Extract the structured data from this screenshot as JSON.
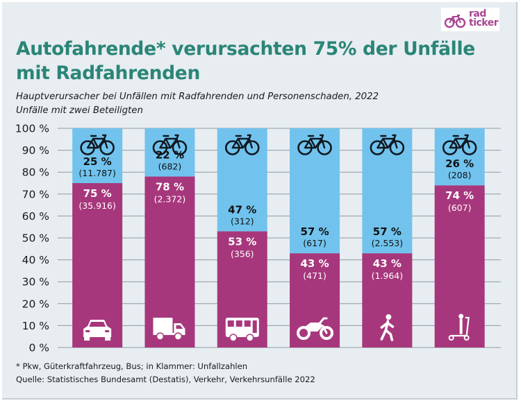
{
  "logo": {
    "line1": "rad",
    "line2": "ticker"
  },
  "title": "Autofahrende* verursachten 75% der Unfälle mit Radfahrenden",
  "subtitle_line1": "Hauptverursacher bei Unfällen mit Radfahrenden und Personenschaden, 2022",
  "subtitle_line2": "Unfälle mit zwei Beteiligten",
  "footnote_line1": "* Pkw, Güterkraftfahrzeug, Bus;  in Klammer: Unfallzahlen",
  "footnote_line2": "Quelle: Statistisches Bundesamt (Destatis), Verkehr, Verkehrsunfälle 2022",
  "colors": {
    "title": "#2a8577",
    "bike": "#71c3ee",
    "other": "#a7377c",
    "grid": "#8e9aa3",
    "background": "#e8edf1"
  },
  "chart_data": {
    "type": "bar",
    "stacked": true,
    "categories": [
      "Pkw",
      "Güterkraftfahrzeug",
      "Bus",
      "Motorrad",
      "Fußgänger",
      "E-Scooter"
    ],
    "category_icons": [
      "car-icon",
      "truck-icon",
      "bus-icon",
      "motorcycle-icon",
      "pedestrian-icon",
      "scooter-icon"
    ],
    "top_icon": "bicycle-icon",
    "y_ticks": [
      "0 %",
      "10 %",
      "20 %",
      "30 %",
      "40 %",
      "50 %",
      "60 %",
      "70 %",
      "80 %",
      "90 %",
      "100 %"
    ],
    "ylim": [
      0,
      100
    ],
    "grid": true,
    "series": [
      {
        "values": [
          75,
          78,
          53,
          43,
          43,
          74
        ],
        "labels": [
          "75 %",
          "78 %",
          "53 %",
          "43 %",
          "43 %",
          "74 %"
        ],
        "counts": [
          "(35.916)",
          "(2.372)",
          "(356)",
          "(471)",
          "(1.964)",
          "(607)"
        ]
      },
      {
        "values": [
          25,
          22,
          47,
          57,
          57,
          26
        ],
        "labels": [
          "25 %",
          "22 %",
          "47 %",
          "57 %",
          "57 %",
          "26 %"
        ],
        "counts": [
          "(11.787)",
          "(682)",
          "(312)",
          "(617)",
          "(2.553)",
          "(208)"
        ]
      }
    ]
  }
}
